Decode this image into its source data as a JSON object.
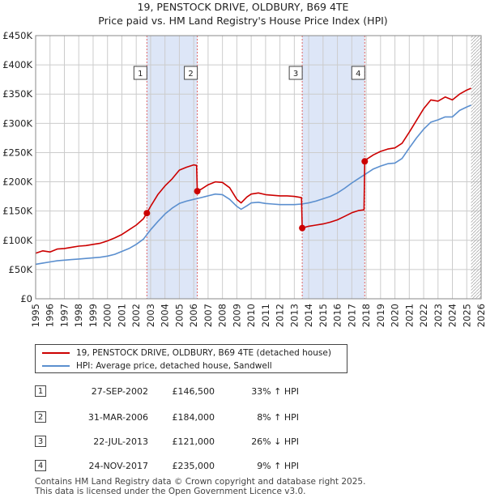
{
  "chart_data": {
    "type": "line",
    "title": "19, PENSTOCK DRIVE, OLDBURY, B69 4TE",
    "subtitle": "Price paid vs. HM Land Registry's House Price Index (HPI)",
    "xlim": [
      1995,
      2026
    ],
    "ylim": [
      0,
      450000
    ],
    "x_ticks": [
      "1995",
      "1996",
      "1997",
      "1998",
      "1999",
      "2000",
      "2001",
      "2002",
      "2003",
      "2004",
      "2005",
      "2006",
      "2007",
      "2008",
      "2009",
      "2010",
      "2011",
      "2012",
      "2013",
      "2014",
      "2015",
      "2016",
      "2017",
      "2018",
      "2019",
      "2020",
      "2021",
      "2022",
      "2023",
      "2024",
      "2025",
      "2026"
    ],
    "y_ticks": [
      {
        "value": 0,
        "label": "£0"
      },
      {
        "value": 50000,
        "label": "£50K"
      },
      {
        "value": 100000,
        "label": "£100K"
      },
      {
        "value": 150000,
        "label": "£150K"
      },
      {
        "value": 200000,
        "label": "£200K"
      },
      {
        "value": 250000,
        "label": "£250K"
      },
      {
        "value": 300000,
        "label": "£300K"
      },
      {
        "value": 350000,
        "label": "£350K"
      },
      {
        "value": 400000,
        "label": "£400K"
      },
      {
        "value": 450000,
        "label": "£450K"
      }
    ],
    "grid": true,
    "shaded_periods": [
      [
        2002.74,
        2006.25
      ],
      [
        2013.55,
        2017.9
      ]
    ],
    "future_hatch_from": 2025.3,
    "series": [
      {
        "name": "19, PENSTOCK DRIVE, OLDBURY, B69 4TE (detached house)",
        "color": "#cc0000",
        "points": [
          [
            1995.0,
            78000
          ],
          [
            1995.5,
            82000
          ],
          [
            1996.0,
            80000
          ],
          [
            1996.5,
            85000
          ],
          [
            1997.0,
            86000
          ],
          [
            1997.5,
            88000
          ],
          [
            1998.0,
            90000
          ],
          [
            1998.5,
            91000
          ],
          [
            1999.0,
            93000
          ],
          [
            1999.5,
            95000
          ],
          [
            2000.0,
            99000
          ],
          [
            2000.5,
            104000
          ],
          [
            2001.0,
            110000
          ],
          [
            2001.5,
            118000
          ],
          [
            2002.0,
            126000
          ],
          [
            2002.5,
            137000
          ],
          [
            2002.74,
            146500
          ],
          [
            2003.0,
            158000
          ],
          [
            2003.5,
            178000
          ],
          [
            2004.0,
            193000
          ],
          [
            2004.5,
            205000
          ],
          [
            2005.0,
            220000
          ],
          [
            2005.5,
            225000
          ],
          [
            2006.0,
            229000
          ],
          [
            2006.2,
            228000
          ],
          [
            2006.25,
            184000
          ],
          [
            2006.5,
            187000
          ],
          [
            2007.0,
            195000
          ],
          [
            2007.5,
            200000
          ],
          [
            2008.0,
            199000
          ],
          [
            2008.5,
            190000
          ],
          [
            2009.0,
            170000
          ],
          [
            2009.3,
            164000
          ],
          [
            2009.7,
            174000
          ],
          [
            2010.0,
            179000
          ],
          [
            2010.5,
            181000
          ],
          [
            2011.0,
            178000
          ],
          [
            2011.5,
            177000
          ],
          [
            2012.0,
            176000
          ],
          [
            2012.5,
            176000
          ],
          [
            2013.0,
            175000
          ],
          [
            2013.5,
            173000
          ],
          [
            2013.55,
            121000
          ],
          [
            2014.0,
            124000
          ],
          [
            2014.5,
            126000
          ],
          [
            2015.0,
            128000
          ],
          [
            2015.5,
            131000
          ],
          [
            2016.0,
            135000
          ],
          [
            2016.5,
            141000
          ],
          [
            2017.0,
            147000
          ],
          [
            2017.5,
            151000
          ],
          [
            2017.85,
            152000
          ],
          [
            2017.9,
            235000
          ],
          [
            2018.0,
            238000
          ],
          [
            2018.5,
            246000
          ],
          [
            2019.0,
            252000
          ],
          [
            2019.5,
            256000
          ],
          [
            2020.0,
            258000
          ],
          [
            2020.5,
            266000
          ],
          [
            2021.0,
            285000
          ],
          [
            2021.5,
            305000
          ],
          [
            2022.0,
            325000
          ],
          [
            2022.5,
            340000
          ],
          [
            2023.0,
            338000
          ],
          [
            2023.5,
            345000
          ],
          [
            2024.0,
            340000
          ],
          [
            2024.5,
            350000
          ],
          [
            2025.0,
            357000
          ],
          [
            2025.3,
            360000
          ]
        ]
      },
      {
        "name": "HPI: Average price, detached house, Sandwell",
        "color": "#5b8fcf",
        "points": [
          [
            1995.0,
            59000
          ],
          [
            1995.5,
            61000
          ],
          [
            1996.0,
            63000
          ],
          [
            1996.5,
            65000
          ],
          [
            1997.0,
            66000
          ],
          [
            1997.5,
            67000
          ],
          [
            1998.0,
            68000
          ],
          [
            1998.5,
            69000
          ],
          [
            1999.0,
            70000
          ],
          [
            1999.5,
            71000
          ],
          [
            2000.0,
            73000
          ],
          [
            2000.5,
            76000
          ],
          [
            2001.0,
            81000
          ],
          [
            2001.5,
            86000
          ],
          [
            2002.0,
            93000
          ],
          [
            2002.5,
            102000
          ],
          [
            2003.0,
            118000
          ],
          [
            2003.5,
            132000
          ],
          [
            2004.0,
            145000
          ],
          [
            2004.5,
            155000
          ],
          [
            2005.0,
            163000
          ],
          [
            2005.5,
            167000
          ],
          [
            2006.0,
            170000
          ],
          [
            2006.5,
            173000
          ],
          [
            2007.0,
            176000
          ],
          [
            2007.5,
            179000
          ],
          [
            2008.0,
            178000
          ],
          [
            2008.5,
            170000
          ],
          [
            2009.0,
            158000
          ],
          [
            2009.3,
            153000
          ],
          [
            2009.7,
            159000
          ],
          [
            2010.0,
            164000
          ],
          [
            2010.5,
            165000
          ],
          [
            2011.0,
            163000
          ],
          [
            2011.5,
            162000
          ],
          [
            2012.0,
            161000
          ],
          [
            2012.5,
            161000
          ],
          [
            2013.0,
            161000
          ],
          [
            2013.5,
            162000
          ],
          [
            2014.0,
            164000
          ],
          [
            2014.5,
            167000
          ],
          [
            2015.0,
            171000
          ],
          [
            2015.5,
            175000
          ],
          [
            2016.0,
            181000
          ],
          [
            2016.5,
            189000
          ],
          [
            2017.0,
            198000
          ],
          [
            2017.5,
            206000
          ],
          [
            2018.0,
            214000
          ],
          [
            2018.5,
            222000
          ],
          [
            2019.0,
            227000
          ],
          [
            2019.5,
            231000
          ],
          [
            2020.0,
            232000
          ],
          [
            2020.5,
            240000
          ],
          [
            2021.0,
            258000
          ],
          [
            2021.5,
            275000
          ],
          [
            2022.0,
            290000
          ],
          [
            2022.5,
            302000
          ],
          [
            2023.0,
            306000
          ],
          [
            2023.5,
            311000
          ],
          [
            2024.0,
            311000
          ],
          [
            2024.5,
            322000
          ],
          [
            2025.0,
            328000
          ],
          [
            2025.3,
            331000
          ]
        ]
      }
    ],
    "sales": [
      {
        "label": "1",
        "x": 2002.74,
        "y": 146500
      },
      {
        "label": "2",
        "x": 2006.25,
        "y": 184000
      },
      {
        "label": "3",
        "x": 2013.55,
        "y": 121000
      },
      {
        "label": "4",
        "x": 2017.9,
        "y": 235000
      }
    ]
  },
  "legend": {
    "property_label": "19, PENSTOCK DRIVE, OLDBURY, B69 4TE (detached house)",
    "hpi_label": "HPI: Average price, detached house, Sandwell"
  },
  "sales_table": [
    {
      "num": "1",
      "date": "27-SEP-2002",
      "price": "£146,500",
      "hpi": "33% ↑ HPI"
    },
    {
      "num": "2",
      "date": "31-MAR-2006",
      "price": "£184,000",
      "hpi": "8% ↑ HPI"
    },
    {
      "num": "3",
      "date": "22-JUL-2013",
      "price": "£121,000",
      "hpi": "26% ↓ HPI"
    },
    {
      "num": "4",
      "date": "24-NOV-2017",
      "price": "£235,000",
      "hpi": "9% ↑ HPI"
    }
  ],
  "footer": {
    "line1": "Contains HM Land Registry data © Crown copyright and database right 2025.",
    "line2": "This data is licensed under the Open Government Licence v3.0."
  },
  "colors": {
    "property": "#cc0000",
    "hpi": "#5b8fcf",
    "shade": "#dde6f7",
    "grid": "#cccccc"
  }
}
